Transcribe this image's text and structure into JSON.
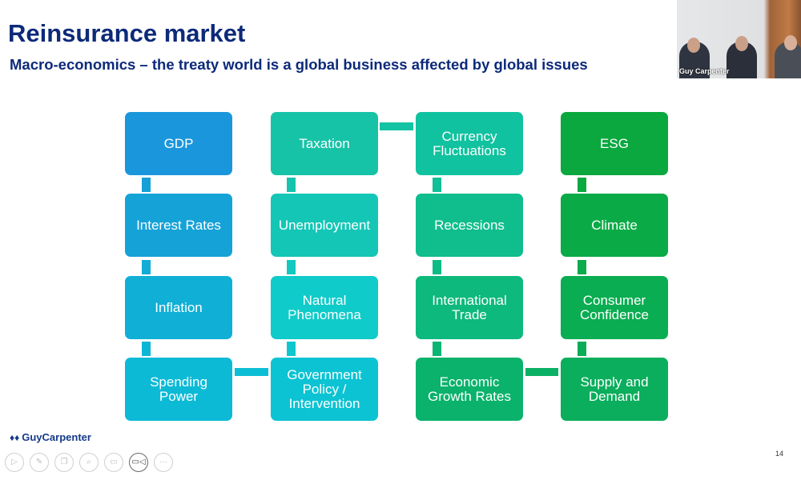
{
  "slide": {
    "title": "Reinsurance market",
    "subtitle": "Macro-economics – the treaty world is a global business affected by global issues",
    "page_number": "14",
    "logo_text": "GuyCarpenter"
  },
  "video": {
    "label": "Guy Carpenter"
  },
  "diagram": {
    "columns": [
      {
        "items": [
          {
            "label": "GDP",
            "color": "#1a96dc"
          },
          {
            "label": "Interest Rates",
            "color": "#15a2d7"
          },
          {
            "label": "Inflation",
            "color": "#10afd6"
          },
          {
            "label": "Spending\nPower",
            "color": "#0cbad6"
          }
        ]
      },
      {
        "items": [
          {
            "label": "Taxation",
            "color": "#17c3a7"
          },
          {
            "label": "Unemployment",
            "color": "#14c6b6"
          },
          {
            "label": "Natural\nPhenomena",
            "color": "#0fcbc9"
          },
          {
            "label": "Government\nPolicy /\nIntervention",
            "color": "#0cc3d3"
          }
        ]
      },
      {
        "items": [
          {
            "label": "Currency\nFluctuations",
            "color": "#10c29f"
          },
          {
            "label": "Recessions",
            "color": "#10bd8d"
          },
          {
            "label": "International\nTrade",
            "color": "#0db97c"
          },
          {
            "label": "Economic\nGrowth Rates",
            "color": "#0ab26b"
          }
        ]
      },
      {
        "items": [
          {
            "label": "ESG",
            "color": "#0aa83e"
          },
          {
            "label": "Climate",
            "color": "#0aab46"
          },
          {
            "label": "Consumer\nConfidence",
            "color": "#0aad51"
          },
          {
            "label": "Supply and\nDemand",
            "color": "#0aae5c"
          }
        ]
      }
    ]
  },
  "controls": [
    {
      "icon": "play-icon"
    },
    {
      "icon": "pen-icon"
    },
    {
      "icon": "slides-icon"
    },
    {
      "icon": "zoom-icon"
    },
    {
      "icon": "subtitles-icon"
    },
    {
      "icon": "video-camera-icon"
    },
    {
      "icon": "more-icon"
    }
  ]
}
